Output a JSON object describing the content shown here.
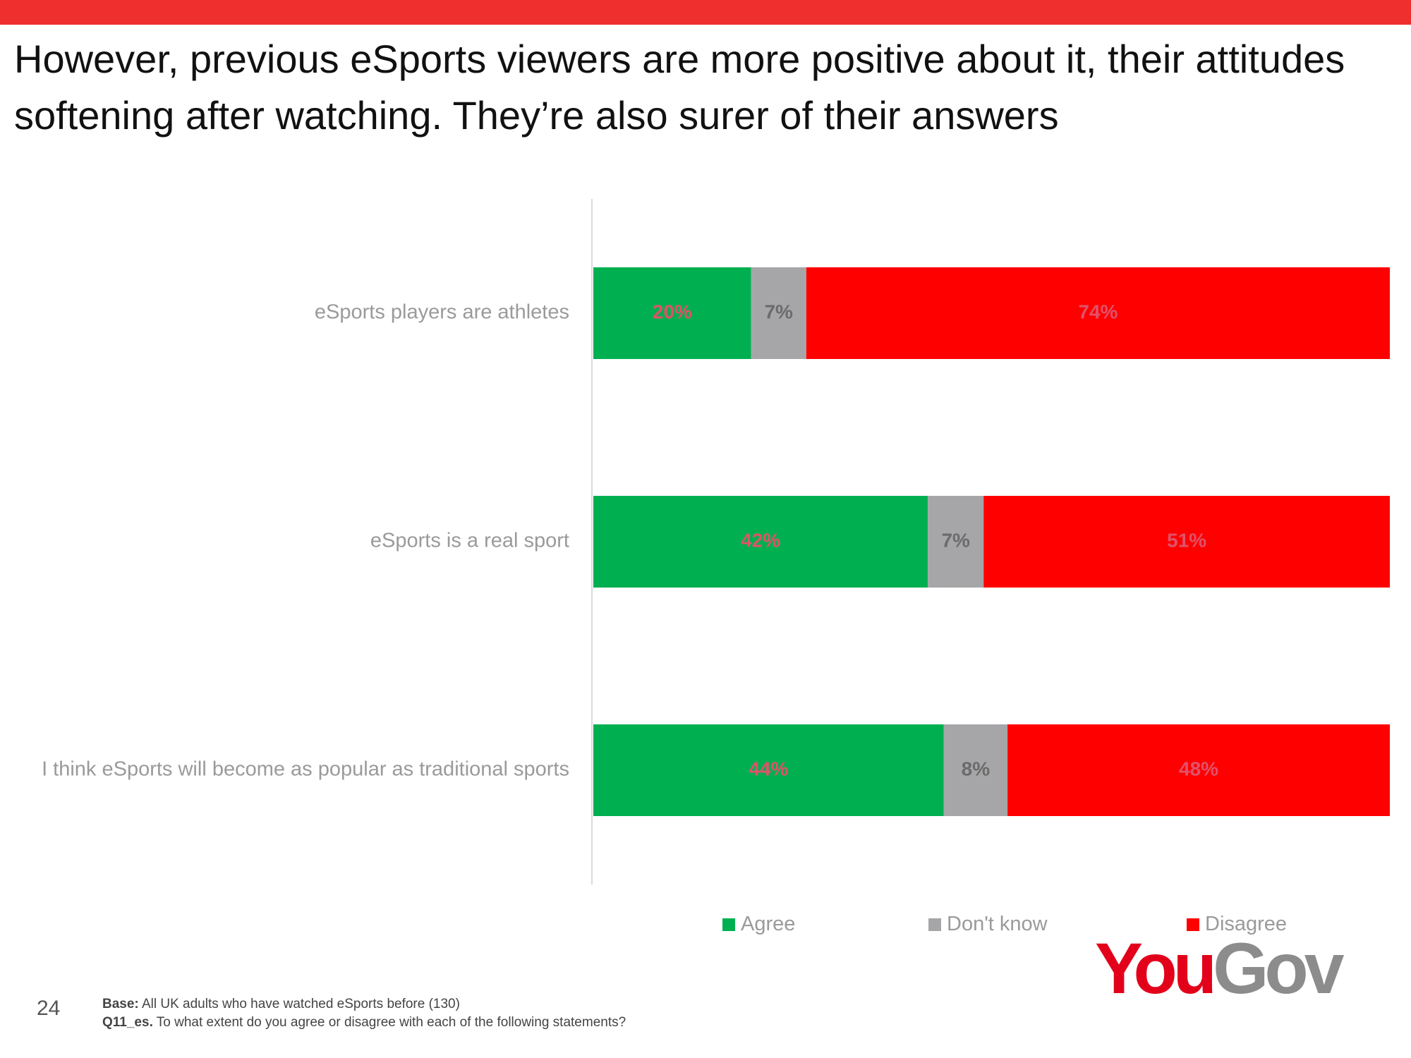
{
  "title": "However, previous eSports viewers are more positive about it, their attitudes softening after watching. They’re also surer of their answers",
  "chart_data": {
    "type": "bar",
    "orientation": "horizontal",
    "stacked": true,
    "categories": [
      "eSports players are athletes",
      "eSports is a real sport",
      "I think eSports will become as popular as traditional sports"
    ],
    "series": [
      {
        "name": "Agree",
        "values": [
          20,
          42,
          44
        ],
        "color": "#00b050",
        "label_color": "#e0526a"
      },
      {
        "name": "Don't know",
        "values": [
          7,
          7,
          8
        ],
        "color": "#a6a6a8",
        "label_color": "#6b6b6b"
      },
      {
        "name": "Disagree",
        "values": [
          74,
          51,
          48
        ],
        "color": "#ff0000",
        "label_color": "#e0526a"
      }
    ],
    "value_suffix": "%",
    "legend_position": "bottom",
    "grid": false
  },
  "legend": {
    "agree": "Agree",
    "dont_know": "Don't know",
    "disagree": "Disagree"
  },
  "logo": {
    "part1": "You",
    "part2": "Gov"
  },
  "page_number": "24",
  "footnote": {
    "base_label": "Base:",
    "base_text": " All UK adults who have watched eSports before (130)",
    "question_label": "Q11_es.",
    "question_text": " To what extent do you agree or disagree with each of the following statements?"
  }
}
